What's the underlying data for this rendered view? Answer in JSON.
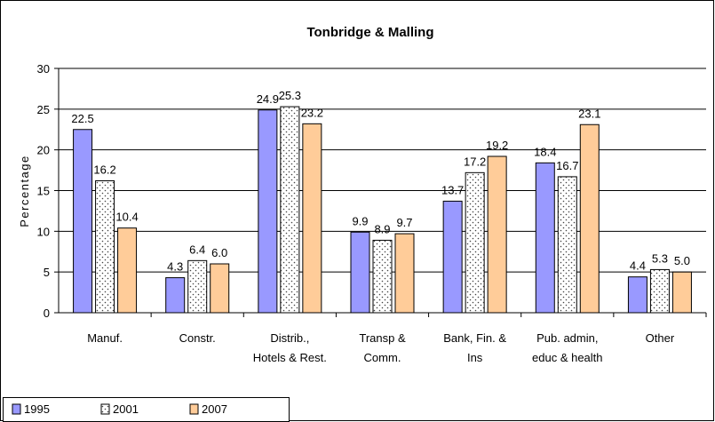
{
  "chart_data": {
    "type": "bar",
    "title": "Tonbridge & Malling",
    "y_label": "Percentage",
    "categories": [
      "Manuf.",
      "Constr.",
      "Distrib.,\nHotels & Rest.",
      "Transp &\nComm.",
      "Bank, Fin. &\nIns",
      "Pub. admin,\neduc & health",
      "Other"
    ],
    "series": [
      {
        "name": "1995",
        "color": "#9999ff",
        "values": [
          22.5,
          4.3,
          24.9,
          9.9,
          13.7,
          18.4,
          4.4
        ],
        "value_labels": [
          "22.5",
          "4.3",
          "24.9",
          "9.9",
          "13.7",
          "18.4",
          "4.4"
        ]
      },
      {
        "name": "2001",
        "color": "#ffffff",
        "pattern": "dots",
        "values": [
          16.2,
          6.4,
          25.3,
          8.9,
          17.2,
          16.7,
          5.3
        ],
        "value_labels": [
          "16.2",
          "6.4",
          "25.3",
          "8.9",
          "17.2",
          "16.7",
          "5.3"
        ]
      },
      {
        "name": "2007",
        "color": "#ffcc99",
        "values": [
          10.4,
          6,
          23.2,
          9.7,
          19.2,
          23.1,
          5
        ],
        "value_labels": [
          "10.4",
          "6.0",
          "23.2",
          "9.7",
          "19.2",
          "23.1",
          "5.0"
        ]
      }
    ],
    "ylim": [
      0,
      30
    ],
    "yticks": [
      0,
      5,
      10,
      15,
      20,
      25,
      30
    ],
    "grid": true,
    "legend": "bottom-left"
  }
}
